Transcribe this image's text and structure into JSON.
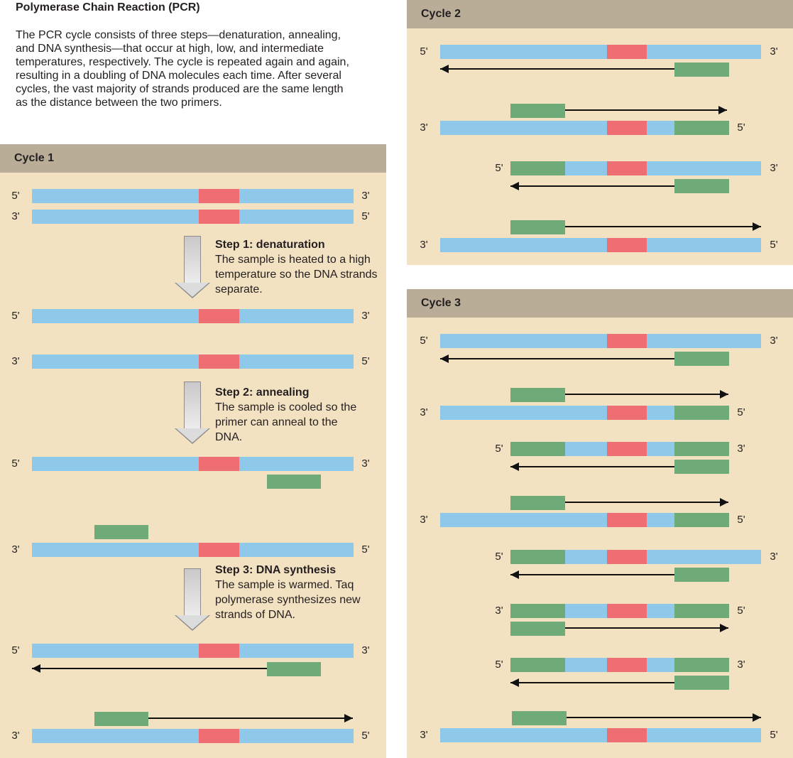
{
  "title": "Polymerase Chain Reaction (PCR)",
  "intro": "The PCR cycle consists of three steps—denaturation, annealing, and DNA synthesis—that occur at high, low, and intermediate temperatures, respectively. The cycle is repeated again and again, resulting in a doubling of DNA molecules each time. After several cycles, the vast majority of strands produced are the same length as the distance between the two primers.",
  "cycle1": {
    "label": "Cycle 1",
    "steps": [
      {
        "heading": "Step 1: denaturation",
        "text": "The sample is heated to a high temperature so the DNA strands separate."
      },
      {
        "heading": "Step 2: annealing",
        "text": "The sample is cooled so the primer can anneal to the DNA."
      },
      {
        "heading": "Step 3: DNA synthesis",
        "text": "The sample is warmed. Taq polymerase synthesizes new strands of DNA."
      }
    ]
  },
  "cycle2": {
    "label": "Cycle 2"
  },
  "cycle3": {
    "label": "Cycle 3"
  },
  "ends": {
    "five": "5'",
    "three": "3'"
  },
  "colors": {
    "panel_bg": "#f3e2c2",
    "header_bg": "#b9ad98",
    "dna_strand": "#8fc9ea",
    "target_region": "#ee6e73",
    "primer": "#6fab79"
  }
}
